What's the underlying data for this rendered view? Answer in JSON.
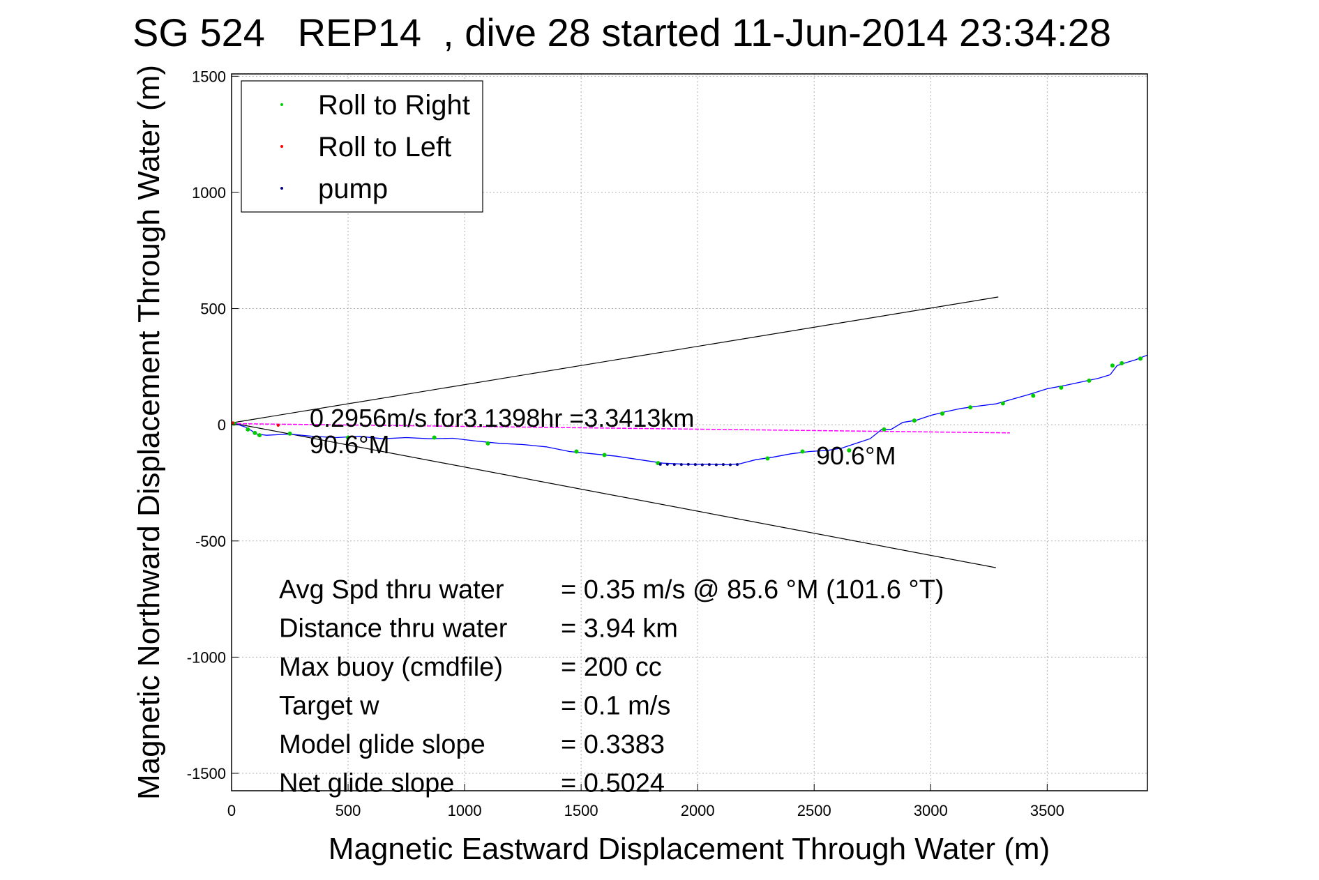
{
  "chart_data": {
    "type": "scatter",
    "title": "SG 524   REP14  , dive 28 started 11-Jun-2014 23:34:28",
    "xlabel": "Magnetic Eastward Displacement Through Water (m)",
    "ylabel": "Magnetic Northward Displacement Through Water (m)",
    "xlim": [
      0,
      3930
    ],
    "ylim": [
      -1575,
      1510
    ],
    "xticks": [
      "0",
      "500",
      "1000",
      "1500",
      "2000",
      "2500",
      "3000",
      "3500"
    ],
    "yticks": [
      "1500",
      "1000",
      "500",
      "0",
      "-500",
      "-1000",
      "-1500"
    ],
    "grid": true,
    "legend": {
      "position": "top-left",
      "entries": [
        {
          "label": "Roll to Right",
          "color": "#00cc00"
        },
        {
          "label": "Roll to Left",
          "color": "#ff0000"
        },
        {
          "label": "pump",
          "color": "#000080"
        }
      ]
    },
    "colors": {
      "track": "#0000ff",
      "roll_right": "#00cc00",
      "roll_left": "#ff0000",
      "pump": "#000080",
      "magenta": "#ff00ff",
      "cone": "#000000"
    },
    "track": {
      "x": [
        0,
        60,
        110,
        150,
        250,
        350,
        450,
        550,
        650,
        750,
        850,
        950,
        1050,
        1150,
        1250,
        1350,
        1450,
        1550,
        1650,
        1750,
        1850,
        1950,
        2050,
        2130,
        2180,
        2250,
        2320,
        2400,
        2480,
        2560,
        2620,
        2680,
        2740,
        2790,
        2830,
        2880,
        2940,
        3000,
        3060,
        3130,
        3200,
        3280,
        3350,
        3420,
        3500,
        3580,
        3650,
        3720,
        3770,
        3800,
        3830,
        3880,
        3930
      ],
      "y": [
        10,
        -10,
        -40,
        -45,
        -40,
        -50,
        -55,
        -50,
        -60,
        -55,
        -60,
        -58,
        -70,
        -80,
        -85,
        -95,
        -115,
        -125,
        -135,
        -150,
        -165,
        -170,
        -170,
        -172,
        -168,
        -150,
        -140,
        -125,
        -115,
        -110,
        -100,
        -80,
        -60,
        -20,
        -20,
        10,
        20,
        40,
        55,
        70,
        80,
        90,
        110,
        130,
        155,
        170,
        185,
        200,
        215,
        255,
        265,
        280,
        300
      ]
    },
    "roll_right_points": {
      "x": [
        10,
        70,
        100,
        120,
        250,
        500,
        870,
        1100,
        1480,
        1600,
        1830,
        2300,
        2450,
        2650,
        2800,
        2930,
        3050,
        3170,
        3310,
        3440,
        3560,
        3680,
        3780,
        3820,
        3900
      ],
      "y": [
        5,
        -20,
        -35,
        -45,
        -38,
        -55,
        -55,
        -80,
        -115,
        -130,
        -165,
        -145,
        -115,
        -110,
        -20,
        18,
        48,
        75,
        92,
        125,
        160,
        190,
        255,
        265,
        285
      ]
    },
    "roll_left_points": {
      "x": [
        5,
        200
      ],
      "y": [
        8,
        -2
      ]
    },
    "pump_points": {
      "x": [
        1840,
        1870,
        1900,
        1930,
        1960,
        1990,
        2020,
        2050,
        2080,
        2110,
        2140,
        2170
      ],
      "y": [
        -170,
        -170,
        -171,
        -171,
        -170,
        -171,
        -172,
        -171,
        -172,
        -171,
        -172,
        -171
      ]
    },
    "magenta_line": {
      "x": [
        0,
        3340
      ],
      "y": [
        5,
        -35
      ]
    },
    "cone_lines": [
      {
        "x": [
          0,
          3290
        ],
        "y": [
          8,
          550
        ]
      },
      {
        "x": [
          0,
          3280
        ],
        "y": [
          8,
          -615
        ]
      }
    ],
    "annotations": {
      "speed": "0.2956m/s for3.1398hr =3.3413km",
      "heading_left": "90.6°M",
      "heading_right": "90.6°M"
    },
    "stats": [
      {
        "label": "Avg Spd thru water",
        "value": "=  0.35 m/s @  85.6 °M (101.6 °T)"
      },
      {
        "label": "Distance thru water",
        "value": "=  3.94 km"
      },
      {
        "label": "Max buoy (cmdfile)",
        "value": "= 200 cc"
      },
      {
        "label": "Target w",
        "value": "= 0.1 m/s"
      },
      {
        "label": "Model glide slope",
        "value": "= 0.3383"
      },
      {
        "label": "Net glide slope",
        "value": "= 0.5024"
      }
    ]
  }
}
